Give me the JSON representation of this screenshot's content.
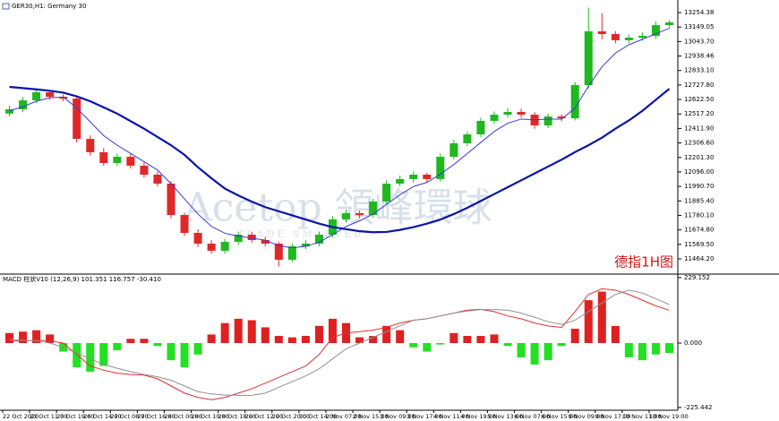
{
  "chart_data": [
    {
      "type": "candlestick",
      "title": "GER30,H1: Germany 30",
      "annotation": "德指1H图",
      "watermark": [
        "Acetop 領峰環球",
        "TRADE SMARTER"
      ],
      "categories": [
        "22 Oct 2020",
        null,
        "23 Oct 11:00",
        null,
        "23 Oct 19:00",
        null,
        "26 Oct 14:00",
        null,
        "27 Oct 08:00",
        null,
        "27 Oct 16:00",
        null,
        "28 Oct 00:00",
        null,
        "28 Oct 10:00",
        null,
        "28 Oct 18:00",
        null,
        "29 Oct 12:00",
        null,
        "29 Oct 20:00",
        null,
        "30 Oct 14:00",
        null,
        "2 Nov 07:00",
        null,
        "2 Nov 15:00",
        null,
        "3 Nov 09:00",
        null,
        "3 Nov 17:00",
        null,
        "4 Nov 11:00",
        null,
        "4 Nov 19:00",
        null,
        "5 Nov 13:00",
        null,
        "6 Nov 07:00",
        null,
        "6 Nov 15:00",
        null,
        "9 Nov 09:00",
        null,
        "9 Nov 17:00",
        null,
        "10 Nov 11:00",
        null,
        "10 Nov 19:00",
        null
      ],
      "open": [
        12520,
        12551,
        12616,
        12675,
        12642,
        12629,
        12336,
        12239,
        12161,
        12206,
        12141,
        12076,
        12011,
        11783,
        11653,
        11575,
        11523,
        11588,
        11640,
        11601,
        11575,
        11458,
        11555,
        11575,
        11640,
        11751,
        11796,
        11783,
        11881,
        12011,
        12044,
        12076,
        12044,
        12206,
        12304,
        12369,
        12467,
        12512,
        12532,
        12512,
        12434,
        12499,
        12486,
        12727,
        13118,
        13098,
        13053,
        13072,
        13085,
        13163
      ],
      "high": [
        12580,
        12640,
        12700,
        12690,
        12660,
        12650,
        12360,
        12270,
        12230,
        12230,
        12165,
        12100,
        12030,
        11800,
        11680,
        11600,
        11610,
        11660,
        11660,
        11625,
        11590,
        11575,
        11600,
        11660,
        11775,
        11820,
        11815,
        11900,
        12035,
        12070,
        12100,
        12090,
        12230,
        12330,
        12390,
        12490,
        12535,
        12560,
        12555,
        12530,
        12520,
        12515,
        12750,
        13290,
        13250,
        13120,
        13095,
        13110,
        13190,
        13200
      ],
      "low": [
        12500,
        12530,
        12595,
        12620,
        12610,
        12310,
        12215,
        12140,
        12140,
        12120,
        12055,
        11990,
        11760,
        11630,
        11550,
        11500,
        11500,
        11565,
        11580,
        11555,
        11410,
        11440,
        11535,
        11555,
        11620,
        11730,
        11760,
        11765,
        11860,
        11990,
        12020,
        12020,
        12025,
        12185,
        12285,
        12350,
        12445,
        12490,
        12490,
        12410,
        12415,
        12465,
        12470,
        12700,
        13060,
        13030,
        13030,
        13050,
        13065,
        13140
      ],
      "close": [
        12551,
        12616,
        12675,
        12642,
        12629,
        12336,
        12239,
        12161,
        12206,
        12141,
        12076,
        12011,
        11783,
        11653,
        11575,
        11523,
        11588,
        11640,
        11601,
        11575,
        11458,
        11555,
        11575,
        11640,
        11751,
        11796,
        11783,
        11881,
        12011,
        12044,
        12076,
        12044,
        12206,
        12304,
        12369,
        12467,
        12512,
        12532,
        12512,
        12434,
        12499,
        12486,
        12727,
        13118,
        13098,
        13053,
        13072,
        13085,
        13163,
        13183
      ],
      "up_color": "#1fb81f",
      "down_color": "#e02828",
      "series": [
        {
          "color": "#3a3ad8",
          "width": 1,
          "values": [
            12540,
            12570,
            12610,
            12635,
            12640,
            12560,
            12460,
            12360,
            12290,
            12230,
            12170,
            12110,
            12010,
            11900,
            11790,
            11700,
            11650,
            11630,
            11615,
            11600,
            11560,
            11545,
            11555,
            11585,
            11640,
            11700,
            11740,
            11790,
            11860,
            11930,
            11990,
            12020,
            12080,
            12150,
            12230,
            12310,
            12390,
            12450,
            12480,
            12475,
            12480,
            12480,
            12560,
            12720,
            12860,
            12960,
            13020,
            13060,
            13100,
            13140
          ]
        },
        {
          "color": "#0a14a8",
          "width": 2.2,
          "values": [
            12714,
            12705,
            12696,
            12686,
            12672,
            12645,
            12610,
            12565,
            12520,
            12465,
            12410,
            12350,
            12290,
            12220,
            12130,
            12050,
            11975,
            11925,
            11880,
            11840,
            11810,
            11780,
            11750,
            11720,
            11695,
            11680,
            11665,
            11658,
            11660,
            11675,
            11695,
            11720,
            11750,
            11790,
            11835,
            11885,
            11935,
            11985,
            12035,
            12085,
            12135,
            12185,
            12240,
            12290,
            12345,
            12410,
            12470,
            12540,
            12620,
            12700
          ]
        }
      ],
      "ylim": [
        11360,
        13313
      ],
      "yticks": [
        13254.38,
        13149.05,
        {
          "value": 13043.7,
          "label": "13043.70"
        },
        12938.46,
        {
          "value": 12833.1,
          "label": "12833.10"
        },
        {
          "value": 12727.8,
          "label": "12727.80"
        },
        {
          "value": 12622.5,
          "label": "12622.50"
        },
        {
          "value": 12517.2,
          "label": "12517.20"
        },
        {
          "value": 12411.9,
          "label": "12411.90"
        },
        {
          "value": 12306.6,
          "label": "12306.60"
        },
        {
          "value": 12201.3,
          "label": "12201.30"
        },
        {
          "value": 12096,
          "label": "12096.00"
        },
        {
          "value": 11990.7,
          "label": "11990.70"
        },
        {
          "value": 11885.4,
          "label": "11885.40"
        },
        {
          "value": 11780.1,
          "label": "11780.10"
        },
        {
          "value": 11674.8,
          "label": "11674.80"
        },
        {
          "value": 11569.5,
          "label": "11569.50"
        },
        {
          "value": 11464.2,
          "label": "11464.20"
        }
      ]
    },
    {
      "type": "macd",
      "title": "MACD 柱状V10 (12,26,9) 101.351 116.757 -30.410",
      "histogram": {
        "up_color": "#e02020",
        "down_color": "#22e022",
        "values": [
          35,
          40,
          45,
          30,
          -30,
          -85,
          -100,
          -80,
          -25,
          15,
          15,
          -10,
          -60,
          -85,
          -40,
          30,
          70,
          85,
          80,
          55,
          25,
          20,
          25,
          60,
          85,
          70,
          20,
          25,
          60,
          45,
          -15,
          -30,
          -5,
          35,
          25,
          25,
          30,
          -10,
          -50,
          -75,
          -60,
          -10,
          50,
          150,
          180,
          60,
          -50,
          -60,
          -40,
          -35
        ]
      },
      "series": [
        {
          "color": "#e03030",
          "values": [
            6,
            8,
            10,
            8,
            0,
            -40,
            -80,
            -95,
            -105,
            -110,
            -112,
            -125,
            -150,
            -175,
            -190,
            -198,
            -190,
            -175,
            -160,
            -140,
            -120,
            -100,
            -80,
            -40,
            20,
            35,
            40,
            45,
            55,
            70,
            80,
            85,
            95,
            105,
            115,
            118,
            110,
            95,
            85,
            70,
            60,
            55,
            110,
            170,
            190,
            185,
            170,
            150,
            130,
            115
          ]
        },
        {
          "color": "#909090",
          "values": [
            12,
            10,
            8,
            0,
            -15,
            -35,
            -55,
            -75,
            -88,
            -100,
            -110,
            -118,
            -130,
            -150,
            -170,
            -178,
            -182,
            -183,
            -183,
            -175,
            -155,
            -135,
            -115,
            -90,
            -55,
            -20,
            0,
            20,
            40,
            60,
            80,
            85,
            95,
            105,
            112,
            117,
            117,
            115,
            105,
            90,
            75,
            65,
            80,
            110,
            140,
            170,
            185,
            175,
            155,
            135
          ]
        }
      ],
      "ylim": [
        -235,
        235
      ],
      "yticks": [
        229.152,
        {
          "value": 0,
          "label": "0.000"
        },
        -225.442
      ]
    }
  ]
}
